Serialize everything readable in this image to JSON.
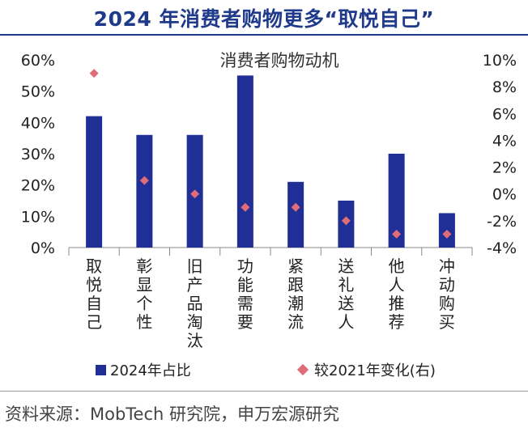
{
  "header": {
    "title": "2024 年消费者购物更多“取悦自己”"
  },
  "chart_data": {
    "type": "bar",
    "title": "消费者购物动机",
    "categories": [
      [
        "取",
        "悦",
        "自",
        "己"
      ],
      [
        "彰",
        "显",
        "个",
        "性"
      ],
      [
        "旧",
        "产",
        "品",
        "淘",
        "汰"
      ],
      [
        "功",
        "能",
        "需",
        "要"
      ],
      [
        "紧",
        "跟",
        "潮",
        "流"
      ],
      [
        "送",
        "礼",
        "送",
        "人"
      ],
      [
        "他",
        "人",
        "推",
        "荐"
      ],
      [
        "冲",
        "动",
        "购",
        "买"
      ]
    ],
    "series": [
      {
        "name": "2024年占比",
        "type": "bar",
        "axis": "left",
        "values": [
          42,
          36,
          36,
          55,
          21,
          15,
          30,
          11
        ],
        "color": "#1f2f95"
      },
      {
        "name": "较2021年变化(右)",
        "type": "scatter",
        "axis": "right",
        "values": [
          9,
          1,
          0,
          -1,
          -1,
          -2,
          -3,
          -3
        ],
        "color": "#e06c78"
      }
    ],
    "left_axis": {
      "ylim": [
        0,
        60
      ],
      "ticks": [
        "0%",
        "10%",
        "20%",
        "30%",
        "40%",
        "50%",
        "60%"
      ]
    },
    "right_axis": {
      "ylim": [
        -4,
        10
      ],
      "ticks": [
        "-4%",
        "-2%",
        "0%",
        "2%",
        "4%",
        "6%",
        "8%",
        "10%"
      ]
    },
    "legend": {
      "placement": "bottom"
    },
    "grid": false
  },
  "source": {
    "text": "资料来源：MobTech 研究院，申万宏源研究"
  }
}
